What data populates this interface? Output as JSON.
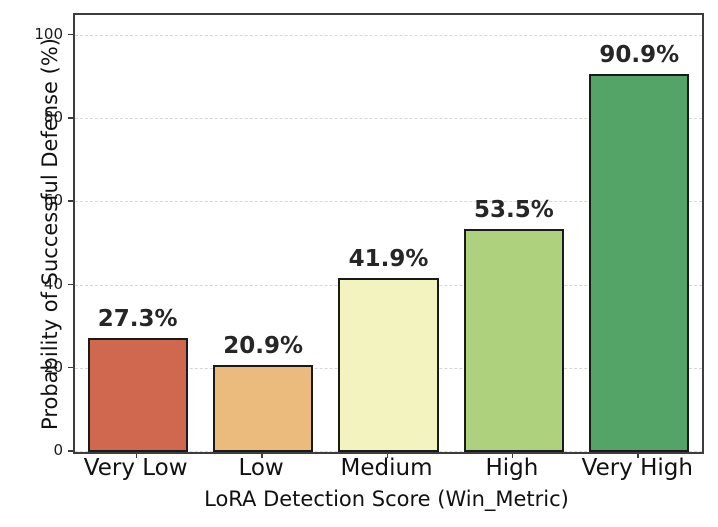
{
  "chart_data": {
    "type": "bar",
    "title": "",
    "xlabel": "LoRA Detection Score (Win_Metric)",
    "ylabel": "Probability of Successful Defense (%)",
    "categories": [
      "Very Low",
      "Low",
      "Medium",
      "High",
      "Very High"
    ],
    "values": [
      27.3,
      20.9,
      41.9,
      53.5,
      90.9
    ],
    "value_labels": [
      "27.3%",
      "20.9%",
      "41.9%",
      "53.5%",
      "90.9%"
    ],
    "bar_colors": [
      "#d0684f",
      "#ebbb7d",
      "#f3f3c0",
      "#aed17e",
      "#54a468"
    ],
    "bar_edge_color": "#1a1a1a",
    "yticks": [
      0,
      20,
      40,
      60,
      80,
      100
    ],
    "ytick_labels": [
      "0",
      "20",
      "40",
      "60",
      "80",
      "100"
    ],
    "ylim": [
      0,
      105
    ],
    "grid": "horizontal-dashed",
    "legend": "none",
    "colors": {
      "spine": "#3d3d3d",
      "gridline": "#d7d7d7",
      "text": "#111111",
      "value_label": "#262626"
    }
  }
}
